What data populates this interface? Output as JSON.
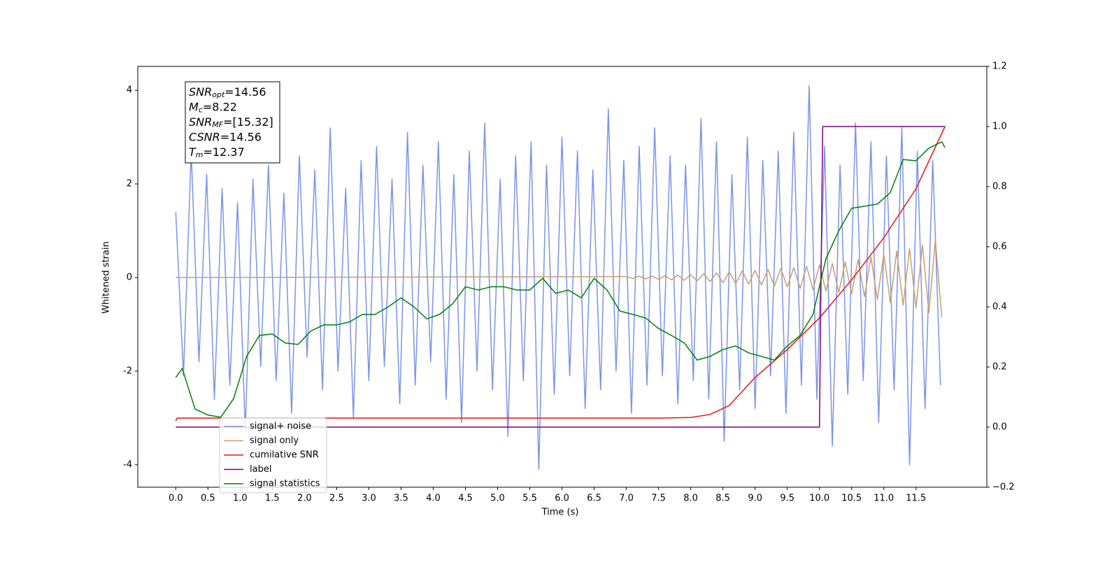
{
  "chart_data": {
    "type": "line",
    "xlabel": "Time (s)",
    "ylabel": "Whitened strain",
    "xlim": [
      -0.59,
      12.6
    ],
    "ylim": [
      -4.48,
      4.51
    ],
    "y2lim": [
      -0.2,
      1.2
    ],
    "xticks": [
      {
        "value": 0,
        "label": "0.0"
      },
      0.5,
      {
        "value": 1,
        "label": "1.0"
      },
      1.5,
      {
        "value": 2,
        "label": "2.0"
      },
      2.5,
      {
        "value": 3,
        "label": "3.0"
      },
      3.5,
      {
        "value": 4,
        "label": "4.0"
      },
      4.5,
      {
        "value": 5,
        "label": "5.0"
      },
      5.5,
      {
        "value": 6,
        "label": "6.0"
      },
      6.5,
      {
        "value": 7,
        "label": "7.0"
      },
      7.5,
      {
        "value": 8,
        "label": "8.0"
      },
      8.5,
      {
        "value": 9,
        "label": "9.0"
      },
      9.5,
      {
        "value": 10,
        "label": "10.0"
      },
      10.5,
      {
        "value": 11,
        "label": "11.0"
      },
      11.5
    ],
    "yticks": [
      -4,
      -2,
      0,
      2,
      4
    ],
    "y2ticks": [
      {
        "value": -0.2,
        "label": "−0.2"
      },
      {
        "value": 0,
        "label": "0.0"
      },
      0.2,
      0.4,
      0.6,
      0.8,
      {
        "value": 1,
        "label": "1.0"
      },
      1.2
    ],
    "legend": "lower left",
    "annotation": [
      {
        "name": "SNR",
        "sub": "opt",
        "text": "=14.56"
      },
      {
        "name": "M",
        "sub": "c",
        "text": "=8.22"
      },
      {
        "name": "SNR",
        "sub": "MF",
        "text": "=[15.32]"
      },
      {
        "name": "CSNR",
        "text": "=14.56"
      },
      {
        "name": "T",
        "sub": "m",
        "text": "=12.37"
      }
    ],
    "series": [
      {
        "name": "signal+ noise",
        "color": "#7b93e8",
        "x": [
          0,
          0.12,
          0.24,
          0.36,
          0.48,
          0.6,
          0.72,
          0.84,
          0.96,
          1.08,
          1.2,
          1.32,
          1.44,
          1.56,
          1.68,
          1.8,
          1.92,
          2.04,
          2.16,
          2.28,
          2.4,
          2.52,
          2.64,
          2.76,
          2.88,
          3,
          3.12,
          3.24,
          3.36,
          3.48,
          3.6,
          3.72,
          3.84,
          3.96,
          4.08,
          4.2,
          4.32,
          4.44,
          4.56,
          4.68,
          4.8,
          4.92,
          5.04,
          5.16,
          5.28,
          5.4,
          5.52,
          5.64,
          5.76,
          5.88,
          6,
          6.12,
          6.24,
          6.36,
          6.48,
          6.6,
          6.72,
          6.84,
          6.96,
          7.08,
          7.2,
          7.32,
          7.44,
          7.56,
          7.68,
          7.8,
          7.92,
          8.04,
          8.16,
          8.28,
          8.4,
          8.52,
          8.64,
          8.76,
          8.88,
          9,
          9.12,
          9.24,
          9.36,
          9.48,
          9.6,
          9.72,
          9.84,
          9.96,
          10.08,
          10.2,
          10.32,
          10.44,
          10.56,
          10.68,
          10.8,
          10.92,
          11.04,
          11.16,
          11.28,
          11.4,
          11.52,
          11.64,
          11.76,
          11.88
        ],
        "values": [
          1.4,
          -2.1,
          2.7,
          -1.8,
          2.2,
          -2.6,
          1.9,
          -2.3,
          1.6,
          -3.3,
          2.1,
          -1.9,
          2.4,
          -2.2,
          1.8,
          -2.9,
          2.6,
          -1.7,
          2.3,
          -2.4,
          3.2,
          -2.0,
          1.9,
          -3.0,
          2.5,
          -2.2,
          2.8,
          -1.9,
          2.1,
          -2.7,
          3.1,
          -2.3,
          2.4,
          -1.8,
          2.9,
          -2.6,
          2.2,
          -3.1,
          2.7,
          -2.0,
          3.3,
          -2.4,
          2.1,
          -3.4,
          2.6,
          -2.2,
          2.9,
          -4.1,
          2.4,
          -2.5,
          3.0,
          -2.1,
          2.7,
          -2.8,
          2.3,
          -2.4,
          3.6,
          -2.0,
          2.5,
          -2.9,
          2.8,
          -2.3,
          3.2,
          -2.1,
          2.6,
          -2.7,
          2.4,
          -2.2,
          3.4,
          -2.6,
          2.9,
          -3.5,
          2.2,
          -2.4,
          3.0,
          -2.8,
          2.5,
          -2.1,
          2.7,
          -2.9,
          3.1,
          -2.3,
          4.1,
          -2.6,
          2.8,
          -3.6,
          2.4,
          -2.5,
          3.3,
          -2.2,
          2.9,
          -3.1,
          2.6,
          -2.4,
          3.2,
          -4.0,
          2.7,
          -2.8,
          2.5,
          -2.3
        ]
      },
      {
        "name": "signal only",
        "color": "#c4a074",
        "x": [
          0,
          7.0,
          7.1,
          7.2,
          7.3,
          7.4,
          7.5,
          7.6,
          7.7,
          7.8,
          7.9,
          8.0,
          8.1,
          8.2,
          8.3,
          8.4,
          8.5,
          8.6,
          8.7,
          8.8,
          8.9,
          9.0,
          9.1,
          9.2,
          9.3,
          9.4,
          9.5,
          9.6,
          9.7,
          9.8,
          9.9,
          10.0,
          10.1,
          10.2,
          10.3,
          10.4,
          10.5,
          10.6,
          10.7,
          10.8,
          10.9,
          11.0,
          11.1,
          11.2,
          11.3,
          11.4,
          11.5,
          11.6,
          11.7,
          11.8,
          11.9
        ],
        "values": [
          0,
          0.02,
          -0.02,
          0.03,
          -0.03,
          0.03,
          -0.04,
          0.04,
          -0.05,
          0.05,
          -0.06,
          0.06,
          -0.07,
          0.08,
          -0.09,
          0.1,
          -0.11,
          0.12,
          -0.13,
          0.14,
          -0.14,
          0.15,
          -0.16,
          0.17,
          -0.18,
          0.19,
          -0.2,
          0.21,
          -0.23,
          0.24,
          -0.26,
          0.27,
          -0.29,
          0.3,
          -0.32,
          0.33,
          -0.35,
          0.38,
          -0.41,
          0.44,
          -0.47,
          0.5,
          -0.53,
          0.56,
          -0.59,
          0.62,
          -0.65,
          0.7,
          -0.75,
          0.8,
          -0.85
        ]
      },
      {
        "name": "cumilative SNR",
        "color": "#ee1111",
        "axis": "y2",
        "x": [
          0,
          0.02,
          7.5,
          8.0,
          8.3,
          8.6,
          9.0,
          9.5,
          10.0,
          10.5,
          11.0,
          11.5,
          11.95
        ],
        "values": [
          0.02,
          0.03,
          0.03,
          0.032,
          0.042,
          0.072,
          0.165,
          0.258,
          0.363,
          0.49,
          0.63,
          0.793,
          1.0
        ]
      },
      {
        "name": "label",
        "color": "#800080",
        "axis": "y2",
        "x": [
          0,
          10.0,
          10.05,
          11.95
        ],
        "values": [
          0,
          0,
          1,
          1
        ]
      },
      {
        "name": "signal statistics",
        "color": "#008000",
        "axis": "y2",
        "x": [
          0,
          0.1,
          0.3,
          0.5,
          0.7,
          0.9,
          1.1,
          1.3,
          1.5,
          1.7,
          1.9,
          2.1,
          2.3,
          2.5,
          2.7,
          2.9,
          3.1,
          3.3,
          3.5,
          3.7,
          3.9,
          4.1,
          4.3,
          4.5,
          4.7,
          4.9,
          5.1,
          5.3,
          5.5,
          5.7,
          5.9,
          6.1,
          6.3,
          6.5,
          6.7,
          6.9,
          7.1,
          7.3,
          7.5,
          7.7,
          7.9,
          8.1,
          8.3,
          8.5,
          8.7,
          8.9,
          9.1,
          9.3,
          9.5,
          9.7,
          9.9,
          10.1,
          10.3,
          10.5,
          10.7,
          10.9,
          11.1,
          11.3,
          11.5,
          11.7,
          11.9,
          11.95
        ],
        "values": [
          0.165,
          0.195,
          0.06,
          0.04,
          0.033,
          0.095,
          0.235,
          0.305,
          0.31,
          0.28,
          0.275,
          0.32,
          0.34,
          0.34,
          0.35,
          0.375,
          0.375,
          0.4,
          0.43,
          0.4,
          0.36,
          0.375,
          0.41,
          0.467,
          0.456,
          0.467,
          0.467,
          0.456,
          0.456,
          0.495,
          0.445,
          0.456,
          0.43,
          0.495,
          0.456,
          0.386,
          0.375,
          0.363,
          0.328,
          0.305,
          0.28,
          0.223,
          0.235,
          0.258,
          0.27,
          0.247,
          0.235,
          0.223,
          0.27,
          0.305,
          0.375,
          0.56,
          0.653,
          0.728,
          0.735,
          0.742,
          0.78,
          0.89,
          0.886,
          0.928,
          0.949,
          0.93
        ]
      }
    ]
  }
}
